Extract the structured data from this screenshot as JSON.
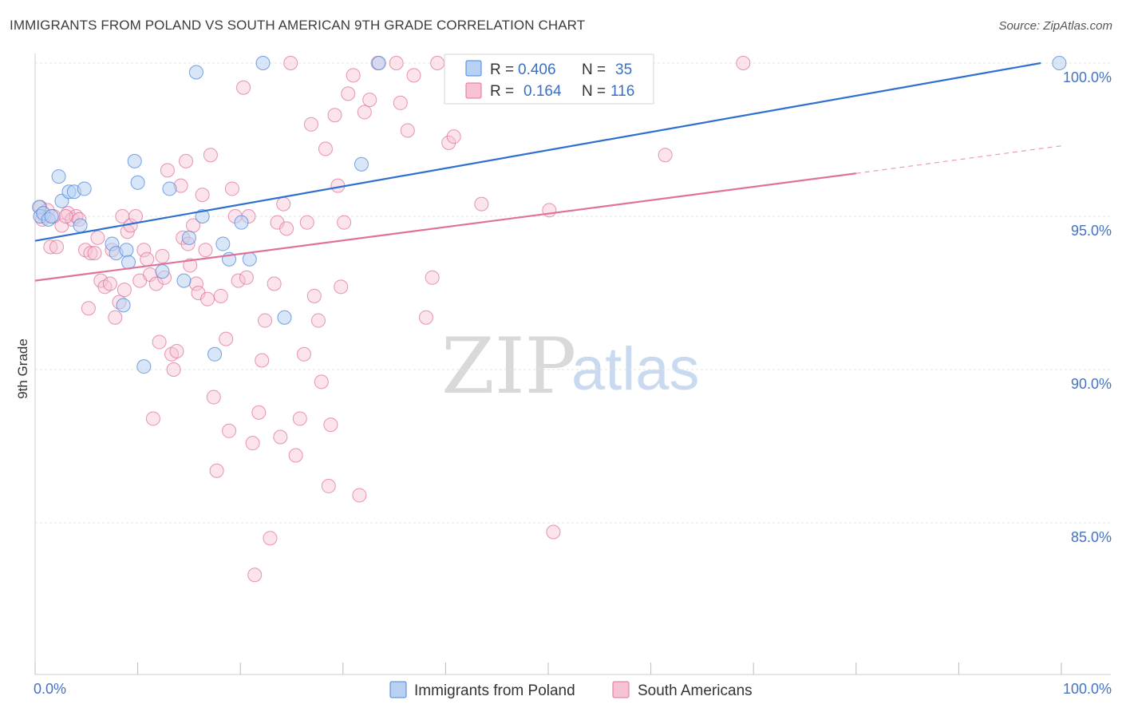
{
  "title": "IMMIGRANTS FROM POLAND VS SOUTH AMERICAN 9TH GRADE CORRELATION CHART",
  "source": "Source: ZipAtlas.com",
  "watermark": {
    "zip": "ZIP",
    "atlas": "atlas"
  },
  "colors": {
    "blue": "#4a86d8",
    "blue_fill": "#b8d1f2",
    "pink": "#e0729a",
    "pink_fill": "#f6c3d5",
    "tick": "#4472c4",
    "grid": "#e3e3e3"
  },
  "legend": {
    "rows": [
      {
        "r_label": "R =",
        "r_value": "0.406",
        "n_label": "N =",
        "n_value": "35"
      },
      {
        "r_label": "R =",
        "r_value": "0.164",
        "n_label": "N =",
        "n_value": "116"
      }
    ]
  },
  "bottom_legend": [
    "Immigrants from Poland",
    "South Americans"
  ],
  "chart_data": {
    "type": "scatter",
    "title": "IMMIGRANTS FROM POLAND VS SOUTH AMERICAN 9TH GRADE CORRELATION CHART",
    "xlabel": "",
    "ylabel": "9th Grade",
    "xlim": [
      0,
      100
    ],
    "ylim": [
      80.5,
      100.5
    ],
    "x_tick_labels": [
      "0.0%",
      "100.0%"
    ],
    "y_ticks": [
      85,
      90,
      95,
      100
    ],
    "y_tick_labels": [
      "85.0%",
      "90.0%",
      "95.0%",
      "100.0%"
    ],
    "grid": true,
    "legend_position": "top-center",
    "series": [
      {
        "name": "Immigrants from Poland",
        "R": 0.406,
        "N": 35,
        "trend": {
          "x": [
            0,
            98
          ],
          "y": [
            94.2,
            100.0
          ]
        },
        "points": [
          [
            0.4,
            95.3
          ],
          [
            0.5,
            95.0
          ],
          [
            0.8,
            95.1
          ],
          [
            1.3,
            94.9
          ],
          [
            1.6,
            95.0
          ],
          [
            2.3,
            96.3
          ],
          [
            2.6,
            95.5
          ],
          [
            3.3,
            95.8
          ],
          [
            3.8,
            95.8
          ],
          [
            4.4,
            94.7
          ],
          [
            4.8,
            95.9
          ],
          [
            7.5,
            94.1
          ],
          [
            7.9,
            93.8
          ],
          [
            8.6,
            92.1
          ],
          [
            8.9,
            93.9
          ],
          [
            9.1,
            93.5
          ],
          [
            9.7,
            96.8
          ],
          [
            10.0,
            96.1
          ],
          [
            10.6,
            90.1
          ],
          [
            12.4,
            93.2
          ],
          [
            13.1,
            95.9
          ],
          [
            14.5,
            92.9
          ],
          [
            15.0,
            94.3
          ],
          [
            15.7,
            99.7
          ],
          [
            16.3,
            95.0
          ],
          [
            17.5,
            90.5
          ],
          [
            18.3,
            94.1
          ],
          [
            18.9,
            93.6
          ],
          [
            20.1,
            94.8
          ],
          [
            20.9,
            93.6
          ],
          [
            22.2,
            100.0
          ],
          [
            24.3,
            91.7
          ],
          [
            31.8,
            96.7
          ],
          [
            33.5,
            100.0
          ],
          [
            99.8,
            100.0
          ]
        ]
      },
      {
        "name": "South Americans",
        "R": 0.164,
        "N": 116,
        "trend": {
          "x": [
            0,
            80
          ],
          "y": [
            92.9,
            96.4
          ]
        },
        "trend_dashed": {
          "x": [
            80,
            100
          ],
          "y": [
            96.4,
            97.3
          ]
        },
        "points": [
          [
            0.5,
            95.3
          ],
          [
            0.9,
            95.0
          ],
          [
            1.2,
            95.2
          ],
          [
            1.5,
            94.0
          ],
          [
            2.1,
            94.0
          ],
          [
            2.6,
            94.7
          ],
          [
            3.2,
            95.1
          ],
          [
            3.6,
            94.9
          ],
          [
            4.0,
            95.0
          ],
          [
            4.3,
            94.9
          ],
          [
            4.9,
            93.9
          ],
          [
            5.2,
            92.0
          ],
          [
            5.4,
            93.8
          ],
          [
            5.8,
            93.8
          ],
          [
            6.1,
            94.3
          ],
          [
            6.4,
            92.9
          ],
          [
            6.8,
            92.7
          ],
          [
            7.3,
            92.8
          ],
          [
            7.5,
            93.9
          ],
          [
            7.8,
            91.7
          ],
          [
            8.2,
            92.2
          ],
          [
            8.5,
            95.0
          ],
          [
            8.7,
            92.6
          ],
          [
            9.0,
            94.5
          ],
          [
            9.3,
            94.7
          ],
          [
            9.8,
            95.0
          ],
          [
            10.2,
            92.9
          ],
          [
            10.6,
            93.9
          ],
          [
            10.9,
            93.6
          ],
          [
            11.2,
            93.1
          ],
          [
            11.5,
            88.4
          ],
          [
            11.8,
            92.8
          ],
          [
            12.1,
            90.9
          ],
          [
            12.4,
            93.7
          ],
          [
            12.6,
            93.0
          ],
          [
            12.9,
            96.5
          ],
          [
            13.3,
            90.5
          ],
          [
            13.5,
            90.0
          ],
          [
            13.8,
            90.6
          ],
          [
            14.2,
            96.0
          ],
          [
            14.4,
            94.3
          ],
          [
            14.7,
            96.8
          ],
          [
            14.9,
            94.1
          ],
          [
            15.1,
            93.4
          ],
          [
            15.4,
            94.7
          ],
          [
            15.7,
            92.8
          ],
          [
            15.9,
            92.5
          ],
          [
            16.3,
            95.7
          ],
          [
            16.6,
            93.9
          ],
          [
            16.8,
            92.3
          ],
          [
            17.1,
            97.0
          ],
          [
            17.4,
            89.1
          ],
          [
            17.7,
            86.7
          ],
          [
            18.1,
            92.4
          ],
          [
            18.6,
            91.0
          ],
          [
            18.9,
            88.0
          ],
          [
            19.2,
            95.9
          ],
          [
            19.5,
            95.0
          ],
          [
            19.8,
            92.9
          ],
          [
            20.3,
            99.2
          ],
          [
            20.6,
            93.0
          ],
          [
            20.8,
            95.0
          ],
          [
            21.2,
            87.6
          ],
          [
            21.4,
            83.3
          ],
          [
            21.8,
            88.6
          ],
          [
            22.1,
            90.3
          ],
          [
            22.4,
            91.6
          ],
          [
            22.9,
            84.5
          ],
          [
            23.3,
            92.8
          ],
          [
            23.6,
            94.8
          ],
          [
            23.9,
            87.8
          ],
          [
            24.2,
            95.4
          ],
          [
            24.5,
            94.6
          ],
          [
            24.9,
            100.0
          ],
          [
            25.4,
            87.2
          ],
          [
            25.8,
            88.4
          ],
          [
            26.2,
            90.5
          ],
          [
            26.5,
            94.8
          ],
          [
            26.9,
            98.0
          ],
          [
            27.2,
            92.4
          ],
          [
            27.6,
            91.6
          ],
          [
            27.9,
            89.6
          ],
          [
            28.3,
            97.2
          ],
          [
            28.6,
            86.2
          ],
          [
            28.8,
            88.2
          ],
          [
            29.2,
            98.3
          ],
          [
            29.5,
            96.0
          ],
          [
            29.8,
            92.7
          ],
          [
            30.1,
            94.8
          ],
          [
            30.5,
            99.0
          ],
          [
            31.0,
            99.6
          ],
          [
            31.6,
            85.9
          ],
          [
            32.1,
            98.4
          ],
          [
            32.6,
            98.8
          ],
          [
            33.4,
            100.0
          ],
          [
            35.2,
            100.0
          ],
          [
            35.6,
            98.7
          ],
          [
            36.3,
            97.8
          ],
          [
            36.9,
            99.6
          ],
          [
            38.1,
            91.7
          ],
          [
            38.7,
            93.0
          ],
          [
            39.2,
            100.0
          ],
          [
            40.3,
            97.4
          ],
          [
            40.8,
            97.6
          ],
          [
            42.2,
            100.0
          ],
          [
            43.5,
            95.4
          ],
          [
            46.3,
            100.0
          ],
          [
            49.3,
            100.0
          ],
          [
            50.1,
            95.2
          ],
          [
            50.5,
            84.7
          ],
          [
            57.1,
            100.0
          ],
          [
            61.4,
            97.0
          ],
          [
            69.0,
            100.0
          ],
          [
            0.7,
            94.9
          ],
          [
            1.8,
            95.0
          ],
          [
            3.0,
            95.0
          ]
        ]
      }
    ]
  }
}
